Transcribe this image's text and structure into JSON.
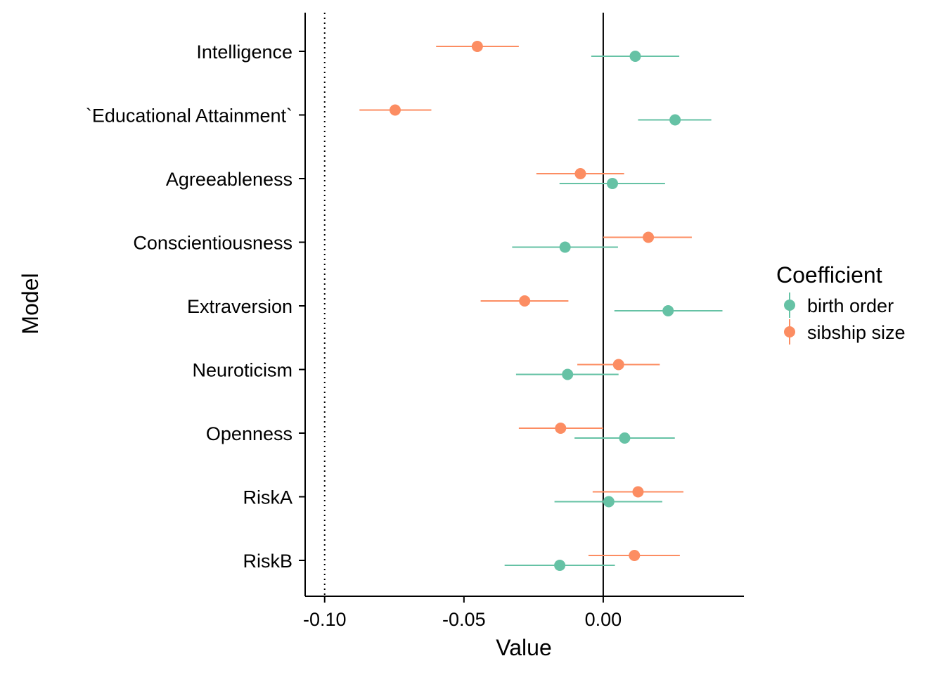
{
  "chart_data": {
    "type": "scatter",
    "xlabel": "Value",
    "ylabel": "Model",
    "xlim": [
      -0.107,
      0.0505
    ],
    "x_ticks": [
      -0.1,
      -0.05,
      0.0
    ],
    "x_tick_labels": [
      "-0.10",
      "-0.05",
      "0.00"
    ],
    "categories": [
      "Intelligence",
      "`Educational Attainment`",
      "Agreeableness",
      "Conscientiousness",
      "Extraversion",
      "Neuroticism",
      "Openness",
      "RiskA",
      "RiskB"
    ],
    "reference_lines": [
      {
        "x": 0.0,
        "style": "solid"
      },
      {
        "x": -0.1,
        "style": "dotted"
      }
    ],
    "legend": {
      "title": "Coefficient",
      "position": "right"
    },
    "series": [
      {
        "name": "birth order",
        "color": "#66c2a5",
        "estimates": [
          0.0115,
          0.0258,
          0.0033,
          -0.0137,
          0.0233,
          -0.0128,
          0.0077,
          0.002,
          -0.0156
        ],
        "lower": [
          -0.0043,
          0.0125,
          -0.0157,
          -0.0327,
          0.004,
          -0.0313,
          -0.0103,
          -0.0175,
          -0.0354
        ],
        "upper": [
          0.0273,
          0.0388,
          0.0222,
          0.0053,
          0.0428,
          0.0055,
          0.0257,
          0.0212,
          0.0042
        ]
      },
      {
        "name": "sibship size",
        "color": "#fc8d62",
        "estimates": [
          -0.0452,
          -0.0747,
          -0.0082,
          0.0162,
          -0.0282,
          0.0055,
          -0.0153,
          0.0125,
          0.0112
        ],
        "lower": [
          -0.06,
          -0.0875,
          -0.024,
          0.0,
          -0.044,
          -0.0093,
          -0.0303,
          -0.0038,
          -0.0053
        ],
        "upper": [
          -0.0303,
          -0.0617,
          0.0075,
          0.0318,
          -0.0125,
          0.0203,
          0.0,
          0.0288,
          0.0275
        ]
      }
    ]
  }
}
